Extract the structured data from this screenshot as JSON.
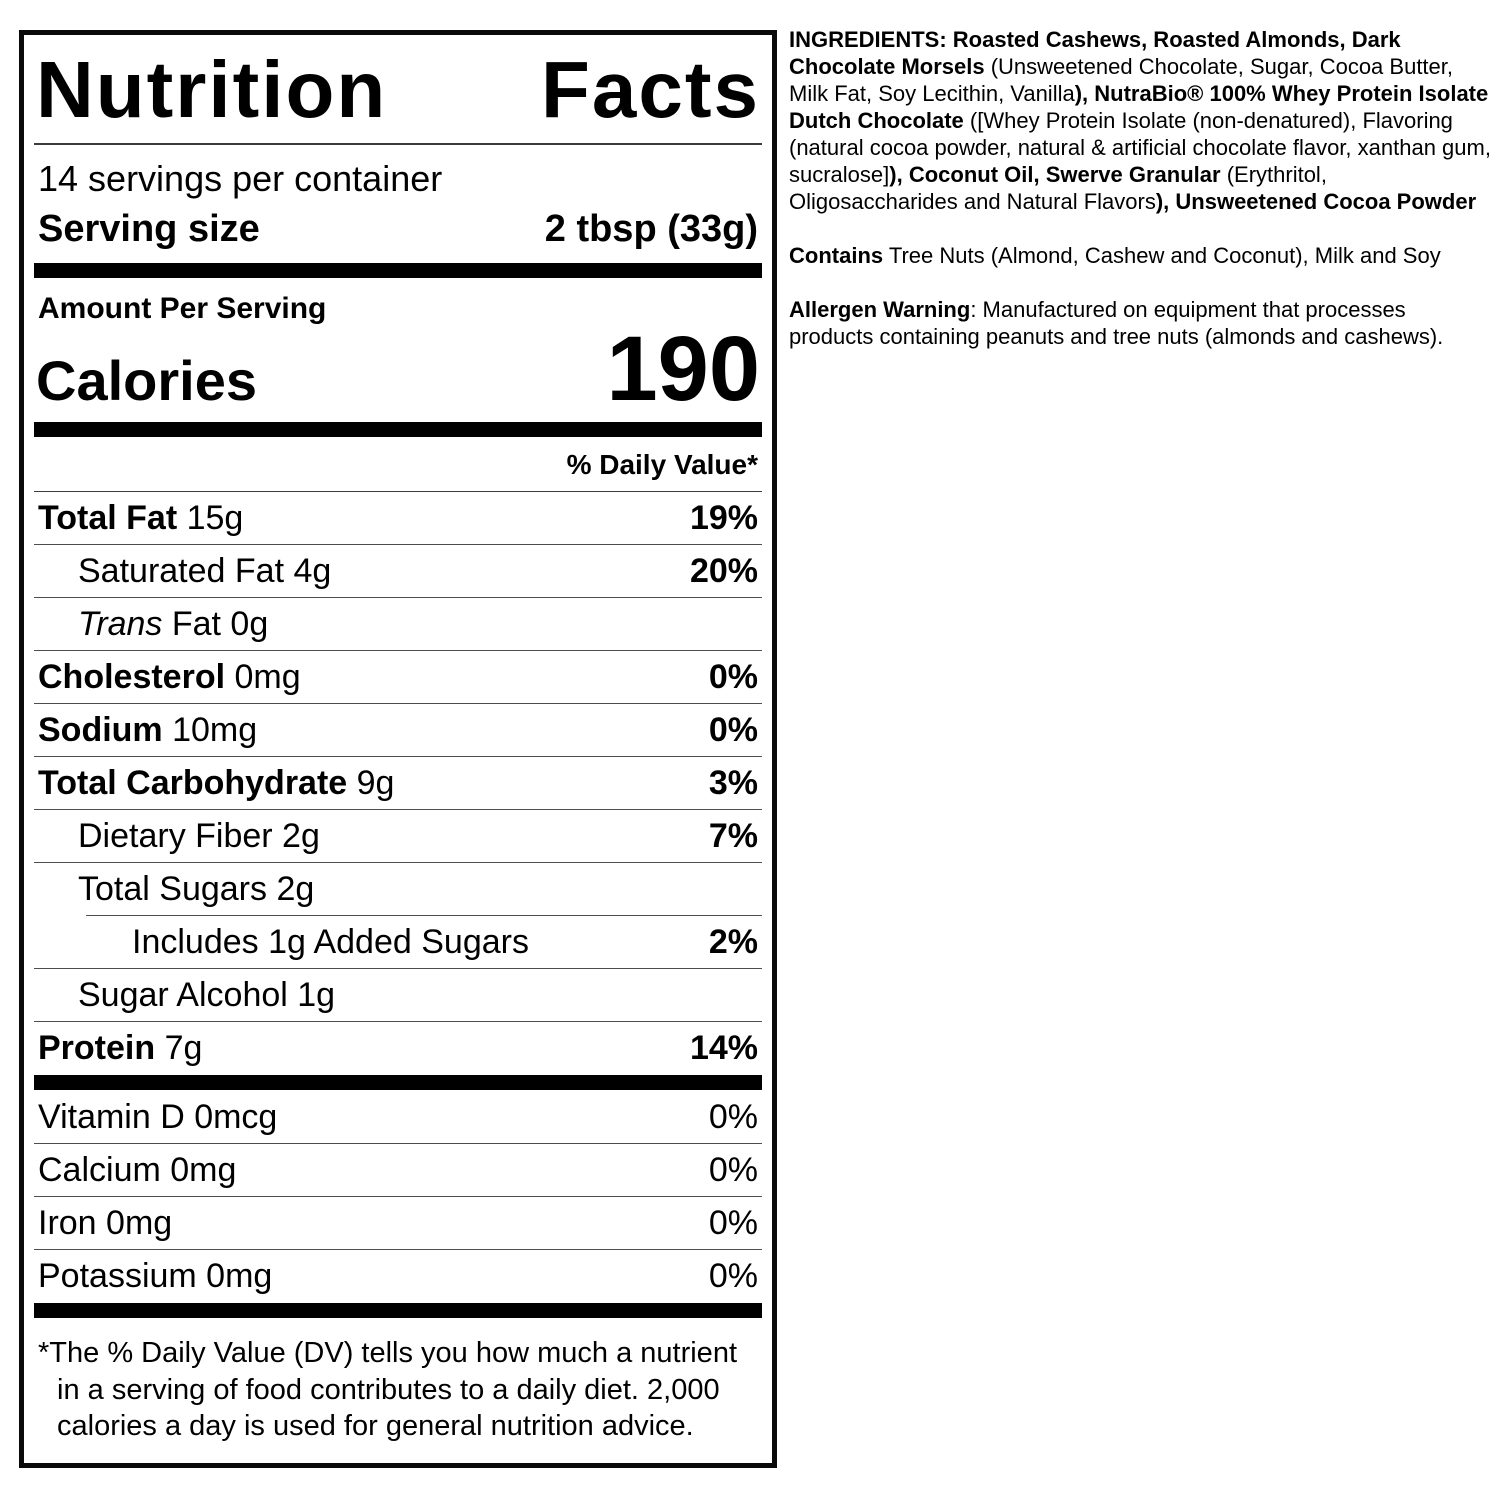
{
  "label": {
    "title": "Nutrition Facts",
    "servings_per_container": "14 servings per container",
    "serving_size_label": "Serving size",
    "serving_size_value": "2 tbsp (33g)",
    "amount_per_serving": "Amount Per Serving",
    "calories_label": "Calories",
    "calories_value": "190",
    "daily_value_header": "% Daily Value*",
    "rows": [
      {
        "segments": [
          {
            "t": "Total Fat",
            "b": true
          },
          {
            "t": " 15g"
          }
        ],
        "percent": "19%",
        "percent_bold": true,
        "indent": 0,
        "sep_after": "thin"
      },
      {
        "segments": [
          {
            "t": "Saturated Fat 4g"
          }
        ],
        "percent": "20%",
        "percent_bold": true,
        "indent": 1,
        "sep_after": "thin"
      },
      {
        "segments": [
          {
            "t": "Trans",
            "i": true
          },
          {
            "t": " Fat 0g"
          }
        ],
        "percent": "",
        "percent_bold": false,
        "indent": 1,
        "sep_after": "thin"
      },
      {
        "segments": [
          {
            "t": "Cholesterol",
            "b": true
          },
          {
            "t": " 0mg"
          }
        ],
        "percent": "0%",
        "percent_bold": true,
        "indent": 0,
        "sep_after": "thin"
      },
      {
        "segments": [
          {
            "t": "Sodium",
            "b": true
          },
          {
            "t": " 10mg"
          }
        ],
        "percent": "0%",
        "percent_bold": true,
        "indent": 0,
        "sep_after": "thin"
      },
      {
        "segments": [
          {
            "t": "Total Carbohydrate",
            "b": true
          },
          {
            "t": " 9g"
          }
        ],
        "percent": "3%",
        "percent_bold": true,
        "indent": 0,
        "sep_after": "thin"
      },
      {
        "segments": [
          {
            "t": "Dietary Fiber 2g"
          }
        ],
        "percent": "7%",
        "percent_bold": true,
        "indent": 1,
        "sep_after": "thin"
      },
      {
        "segments": [
          {
            "t": "Total Sugars 2g"
          }
        ],
        "percent": "",
        "percent_bold": false,
        "indent": 1,
        "sep_after": "thin-indented"
      },
      {
        "segments": [
          {
            "t": "Includes 1g Added Sugars"
          }
        ],
        "percent": "2%",
        "percent_bold": true,
        "indent": 2,
        "sep_after": "thin"
      },
      {
        "segments": [
          {
            "t": "Sugar Alcohol 1g"
          }
        ],
        "percent": "",
        "percent_bold": false,
        "indent": 1,
        "sep_after": "thin"
      },
      {
        "segments": [
          {
            "t": "Protein",
            "b": true
          },
          {
            "t": " 7g"
          }
        ],
        "percent": "14%",
        "percent_bold": true,
        "indent": 0,
        "sep_after": "thick"
      },
      {
        "segments": [
          {
            "t": "Vitamin D 0mcg"
          }
        ],
        "percent": "0%",
        "percent_bold": false,
        "indent": 0,
        "sep_after": "thin"
      },
      {
        "segments": [
          {
            "t": "Calcium 0mg"
          }
        ],
        "percent": "0%",
        "percent_bold": false,
        "indent": 0,
        "sep_after": "thin"
      },
      {
        "segments": [
          {
            "t": "Iron 0mg"
          }
        ],
        "percent": "0%",
        "percent_bold": false,
        "indent": 0,
        "sep_after": "thin"
      },
      {
        "segments": [
          {
            "t": "Potassium 0mg"
          }
        ],
        "percent": "0%",
        "percent_bold": false,
        "indent": 0,
        "sep_after": "thick"
      }
    ],
    "footnote_marker": "*",
    "footnote_text": "The % Daily Value (DV) tells you how much a nutrient in a serving of food contributes to a daily diet. 2,000 calories a day is used for general nutrition advice."
  },
  "ingredients_panel": {
    "ingredients": [
      {
        "t": "INGREDIENTS: Roasted Cashews, Roasted Almonds, Dark Chocolate Morsels",
        "b": true
      },
      {
        "t": " (Unsweetened Chocolate, Sugar, Cocoa Butter, Milk Fat, Soy Lecithin, Vanilla"
      },
      {
        "t": "), NutraBio® 100% Whey Protein Isolate Dutch Chocolate",
        "b": true
      },
      {
        "t": " ([Whey Protein Isolate (non-denatured), Flavoring (natural cocoa powder, natural & artificial chocolate flavor, xanthan gum, sucralose]"
      },
      {
        "t": "), Coconut Oil, Swerve Granular",
        "b": true
      },
      {
        "t": " (Erythritol, Oligosaccharides and Natural Flavors"
      },
      {
        "t": "), Unsweetened Cocoa Powder",
        "b": true
      }
    ],
    "contains": [
      {
        "t": "Contains",
        "b": true
      },
      {
        "t": " Tree Nuts (Almond, Cashew and Coconut), Milk and Soy"
      }
    ],
    "allergen_warning": [
      {
        "t": "Allergen Warning",
        "b": true
      },
      {
        "t": ": Manufactured on equipment that processes products containing peanuts and tree nuts (almonds and cashews)."
      }
    ]
  },
  "colors": {
    "text": "#000000",
    "background": "#ffffff",
    "thick_bar": "#000000",
    "thin_rule": "#4d4d4d"
  }
}
